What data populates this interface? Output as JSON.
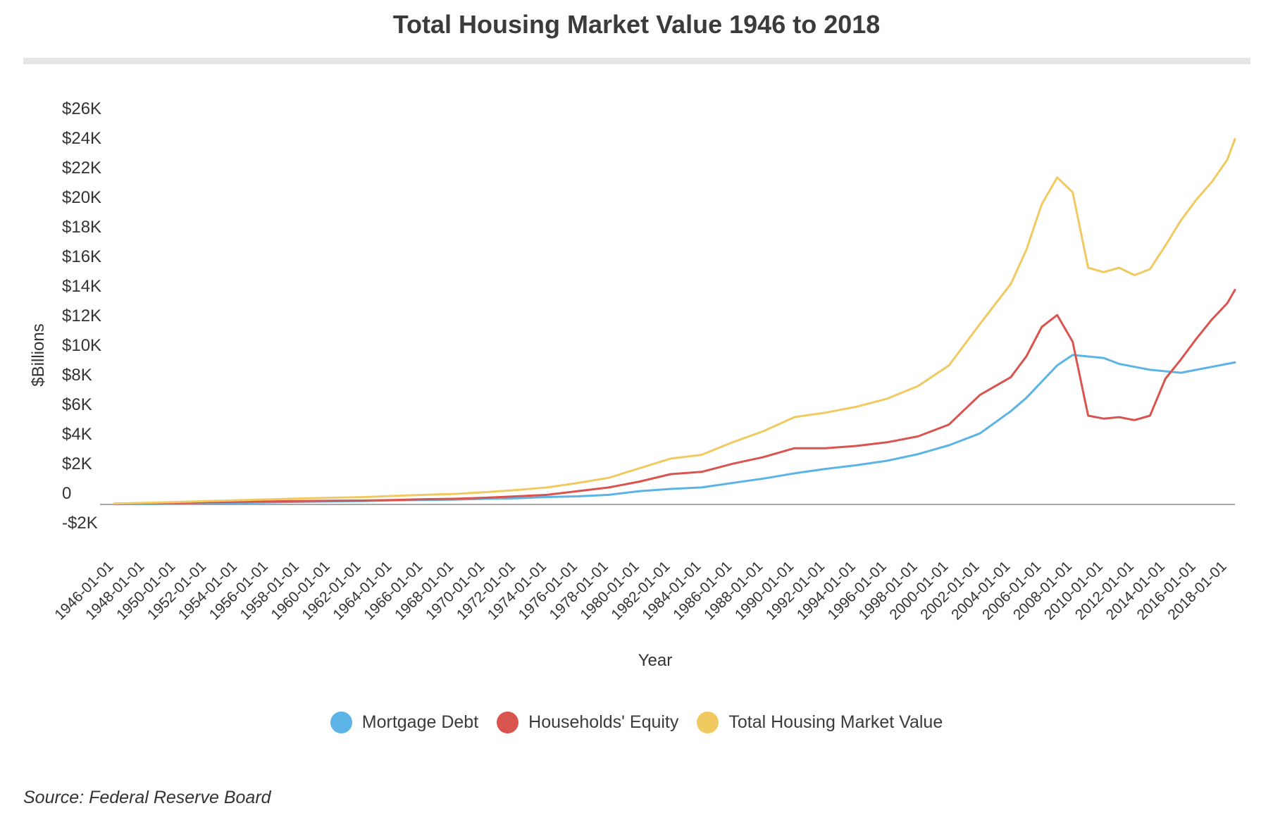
{
  "chart_data": {
    "type": "line",
    "title": "Total Housing Market Value 1946 to 2018",
    "xlabel": "Year",
    "ylabel": "$Billions",
    "ylim": [
      -2000,
      26000
    ],
    "y_ticks": [
      {
        "value": 26000,
        "label": "$26K"
      },
      {
        "value": 24000,
        "label": "$24K"
      },
      {
        "value": 22000,
        "label": "$22K"
      },
      {
        "value": 20000,
        "label": "$20K"
      },
      {
        "value": 18000,
        "label": "$18K"
      },
      {
        "value": 16000,
        "label": "$16K"
      },
      {
        "value": 14000,
        "label": "$14K"
      },
      {
        "value": 12000,
        "label": "$12K"
      },
      {
        "value": 10000,
        "label": "$10K"
      },
      {
        "value": 8000,
        "label": "$8K"
      },
      {
        "value": 6000,
        "label": "$6K"
      },
      {
        "value": 4000,
        "label": "$4K"
      },
      {
        "value": 2000,
        "label": "$2K"
      },
      {
        "value": 0,
        "label": "0"
      },
      {
        "value": -2000,
        "label": "-$2K"
      }
    ],
    "x_ticks": [
      "1946-01-01",
      "1948-01-01",
      "1950-01-01",
      "1952-01-01",
      "1954-01-01",
      "1956-01-01",
      "1958-01-01",
      "1960-01-01",
      "1962-01-01",
      "1964-01-01",
      "1966-01-01",
      "1968-01-01",
      "1970-01-01",
      "1972-01-01",
      "1974-01-01",
      "1976-01-01",
      "1978-01-01",
      "1980-01-01",
      "1982-01-01",
      "1984-01-01",
      "1986-01-01",
      "1988-01-01",
      "1990-01-01",
      "1992-01-01",
      "1994-01-01",
      "1996-01-01",
      "1998-01-01",
      "2000-01-01",
      "2002-01-01",
      "2004-01-01",
      "2006-01-01",
      "2008-01-01",
      "2010-01-01",
      "2012-01-01",
      "2014-01-01",
      "2016-01-01",
      "2018-01-01"
    ],
    "x": [
      "1946-01-01",
      "1948-01-01",
      "1950-01-01",
      "1952-01-01",
      "1954-01-01",
      "1956-01-01",
      "1958-01-01",
      "1960-01-01",
      "1962-01-01",
      "1964-01-01",
      "1966-01-01",
      "1968-01-01",
      "1970-01-01",
      "1972-01-01",
      "1974-01-01",
      "1976-01-01",
      "1978-01-01",
      "1980-01-01",
      "1982-01-01",
      "1984-01-01",
      "1986-01-01",
      "1988-01-01",
      "1990-01-01",
      "1992-01-01",
      "1994-01-01",
      "1996-01-01",
      "1998-01-01",
      "2000-01-01",
      "2002-01-01",
      "2004-01-01",
      "2005-01-01",
      "2006-01-01",
      "2007-01-01",
      "2008-01-01",
      "2009-01-01",
      "2010-01-01",
      "2011-01-01",
      "2012-01-01",
      "2013-01-01",
      "2014-01-01",
      "2015-01-01",
      "2016-01-01",
      "2017-01-01",
      "2018-01-01",
      "2018-07-01"
    ],
    "series": [
      {
        "name": "Mortgage Debt",
        "color": "#5bb4e5",
        "values": [
          20,
          40,
          60,
          80,
          110,
          140,
          170,
          200,
          230,
          270,
          300,
          330,
          380,
          420,
          500,
          550,
          650,
          900,
          1050,
          1150,
          1450,
          1750,
          2100,
          2400,
          2650,
          2950,
          3400,
          4000,
          4800,
          6300,
          7200,
          8300,
          9400,
          10100,
          10000,
          9900,
          9500,
          9300,
          9100,
          9000,
          8900,
          9100,
          9300,
          9500,
          9600
        ]
      },
      {
        "name": "Households' Equity",
        "color": "#d9534f",
        "values": [
          40,
          70,
          100,
          150,
          170,
          200,
          230,
          250,
          260,
          300,
          350,
          380,
          450,
          550,
          650,
          900,
          1150,
          1550,
          2050,
          2200,
          2750,
          3200,
          3800,
          3800,
          3950,
          4200,
          4600,
          5400,
          7400,
          8600,
          10000,
          12000,
          12800,
          11000,
          6000,
          5800,
          5900,
          5700,
          6000,
          8500,
          9800,
          11200,
          12500,
          13600,
          14500
        ]
      },
      {
        "name": "Total Housing Market Value",
        "color": "#f0c960",
        "values": [
          60,
          110,
          160,
          230,
          280,
          340,
          400,
          450,
          490,
          570,
          650,
          710,
          830,
          970,
          1150,
          1450,
          1800,
          2450,
          3100,
          3350,
          4200,
          4950,
          5900,
          6200,
          6600,
          7150,
          8000,
          9400,
          12200,
          14900,
          17200,
          20300,
          22100,
          21100,
          16000,
          15700,
          16000,
          15500,
          15900,
          17500,
          19200,
          20600,
          21800,
          23300,
          24700
        ]
      }
    ],
    "legend_position": "bottom",
    "grid": false
  },
  "source": "Source: Federal Reserve Board"
}
